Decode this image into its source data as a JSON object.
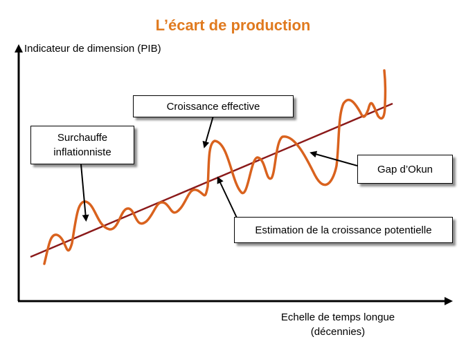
{
  "title": "L’écart de production",
  "axes": {
    "y_label": "Indicateur de dimension (PIB)",
    "x_label_line1": "Echelle de temps longue",
    "x_label_line2": "(décennies)"
  },
  "callouts": {
    "surchauffe_line1": "Surchauffe",
    "surchauffe_line2": "inflationniste",
    "croissance_effective": "Croissance effective",
    "gap_okun": "Gap d’Okun",
    "croissance_potentielle": "Estimation de la croissance potentielle"
  },
  "colors": {
    "title": "#e07a1f",
    "trend_line": "#8b1a1a",
    "wave_line": "#d9621e"
  }
}
